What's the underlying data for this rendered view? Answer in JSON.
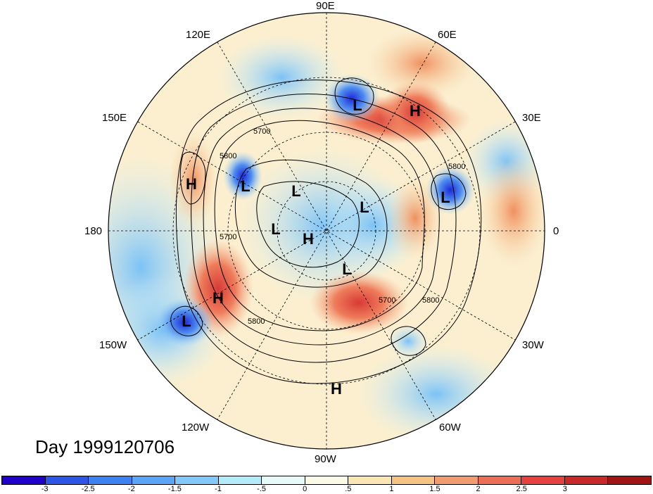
{
  "title": "Day 1999120706",
  "longitude_labels": {
    "lon_90e": "90E",
    "lon_60e": "60E",
    "lon_120e": "120E",
    "lon_150e": "150E",
    "lon_30e": "30E",
    "lon_180": "180",
    "lon_0": "0",
    "lon_150w": "150W",
    "lon_30w": "30W",
    "lon_120w": "120W",
    "lon_60w": "60W",
    "lon_90w": "90W"
  },
  "pressure_centers": [
    {
      "label": "L"
    },
    {
      "label": "H"
    },
    {
      "label": "H"
    },
    {
      "label": "L"
    },
    {
      "label": "L"
    },
    {
      "label": "L"
    },
    {
      "label": "L"
    },
    {
      "label": "L"
    },
    {
      "label": "H"
    },
    {
      "label": "L"
    },
    {
      "label": "H"
    },
    {
      "label": "L"
    },
    {
      "label": "H"
    }
  ],
  "contour_labels": [
    "5700",
    "5800",
    "5800",
    "5700",
    "5800",
    "5700",
    "5800"
  ],
  "colorbar": {
    "colors": [
      "#1e00c8",
      "#2d55e6",
      "#3c82f0",
      "#5aa5f5",
      "#82c8fa",
      "#b4ebfa",
      "#e6fafa",
      "#fafae6",
      "#fae6b4",
      "#f5c382",
      "#f09c6e",
      "#eb6e55",
      "#e64141",
      "#c82828",
      "#a01414"
    ],
    "ticks": [
      "-3",
      "-2.5",
      "-2",
      "-1.5",
      "-1",
      "-.5",
      "0",
      ".5",
      "1",
      "1.5",
      "2",
      "2.5",
      "3"
    ]
  }
}
